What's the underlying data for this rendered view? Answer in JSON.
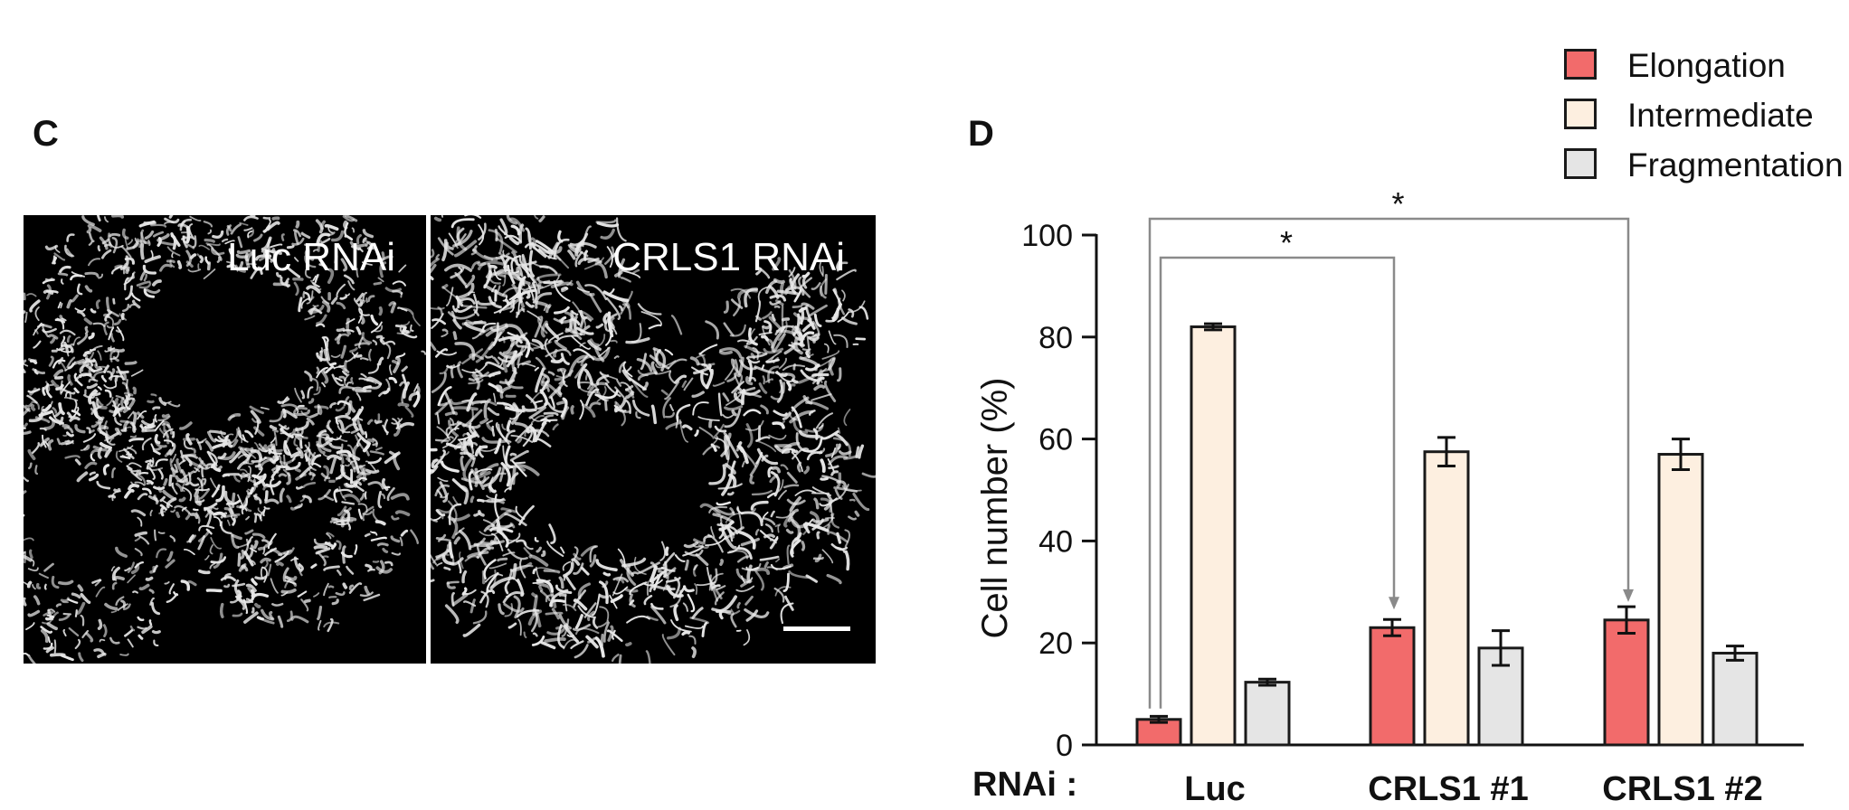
{
  "panels": {
    "c_label": "C",
    "d_label": "D"
  },
  "micrographs": {
    "left_label": "Luc RNAi",
    "right_label": "CRLS1 RNAi"
  },
  "chart_data": {
    "type": "bar",
    "categories": [
      "Luc",
      "CRLS1 #1",
      "CRLS1 #2"
    ],
    "category_axis_title": "RNAi :",
    "ylabel": "Cell number (%)",
    "ylim": [
      0,
      100
    ],
    "yticks": [
      0,
      20,
      40,
      60,
      80,
      100
    ],
    "series": [
      {
        "name": "Elongation",
        "color": "#f26b6b",
        "values": [
          5,
          23,
          24.5
        ],
        "errors": [
          0.6,
          1.6,
          2.6
        ]
      },
      {
        "name": "Intermediate",
        "color": "#fdefe0",
        "values": [
          82,
          57.5,
          57
        ],
        "errors": [
          0.6,
          2.8,
          3.0
        ]
      },
      {
        "name": "Fragmentation",
        "color": "#e5e5e5",
        "values": [
          12.3,
          19,
          18
        ],
        "errors": [
          0.6,
          3.4,
          1.4
        ]
      }
    ],
    "significance": [
      {
        "from": "Luc",
        "to": "CRLS1 #1",
        "series": "Elongation",
        "label": "*"
      },
      {
        "from": "Luc",
        "to": "CRLS1 #2",
        "series": "Elongation",
        "label": "*"
      }
    ],
    "legend_position": "top-right",
    "grid": false
  }
}
